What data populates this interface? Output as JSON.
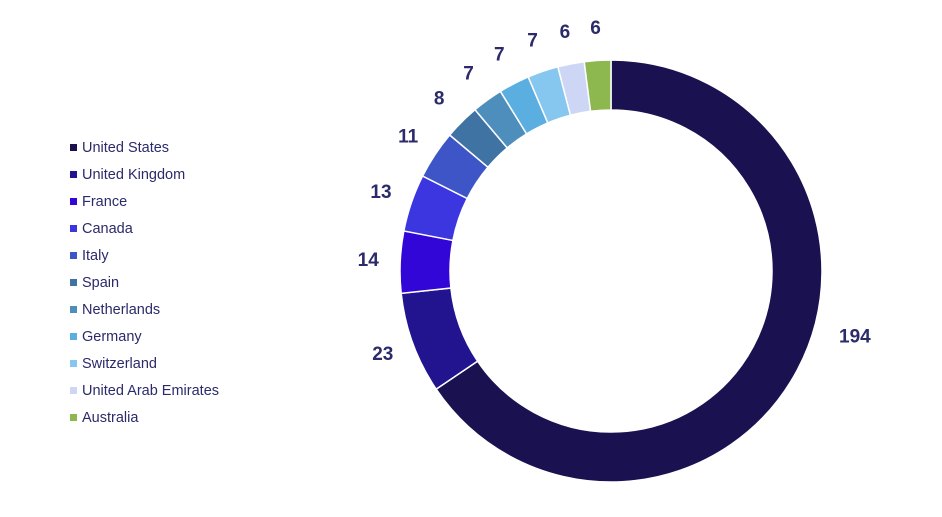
{
  "chart_data": {
    "type": "pie",
    "variant": "donut",
    "title": "",
    "legend_position": "left",
    "categories": [
      "United States",
      "United Kingdom",
      "France",
      "Canada",
      "Italy",
      "Spain",
      "Netherlands",
      "Germany",
      "Switzerland",
      "United Arab Emirates",
      "Australia"
    ],
    "values": [
      194,
      23,
      14,
      13,
      11,
      8,
      7,
      7,
      7,
      6,
      6
    ],
    "colors": [
      "#1a1150",
      "#22138f",
      "#3206d6",
      "#3b36e0",
      "#3e55c8",
      "#3e73a3",
      "#4e8ebd",
      "#5aaee0",
      "#86c7f0",
      "#cdd7f5",
      "#8db84f"
    ],
    "data_labels": [
      "194",
      "23",
      "14",
      "13",
      "11",
      "8",
      "7",
      "7",
      "7",
      "6",
      "6"
    ],
    "label_color": "#2b2a6a"
  }
}
